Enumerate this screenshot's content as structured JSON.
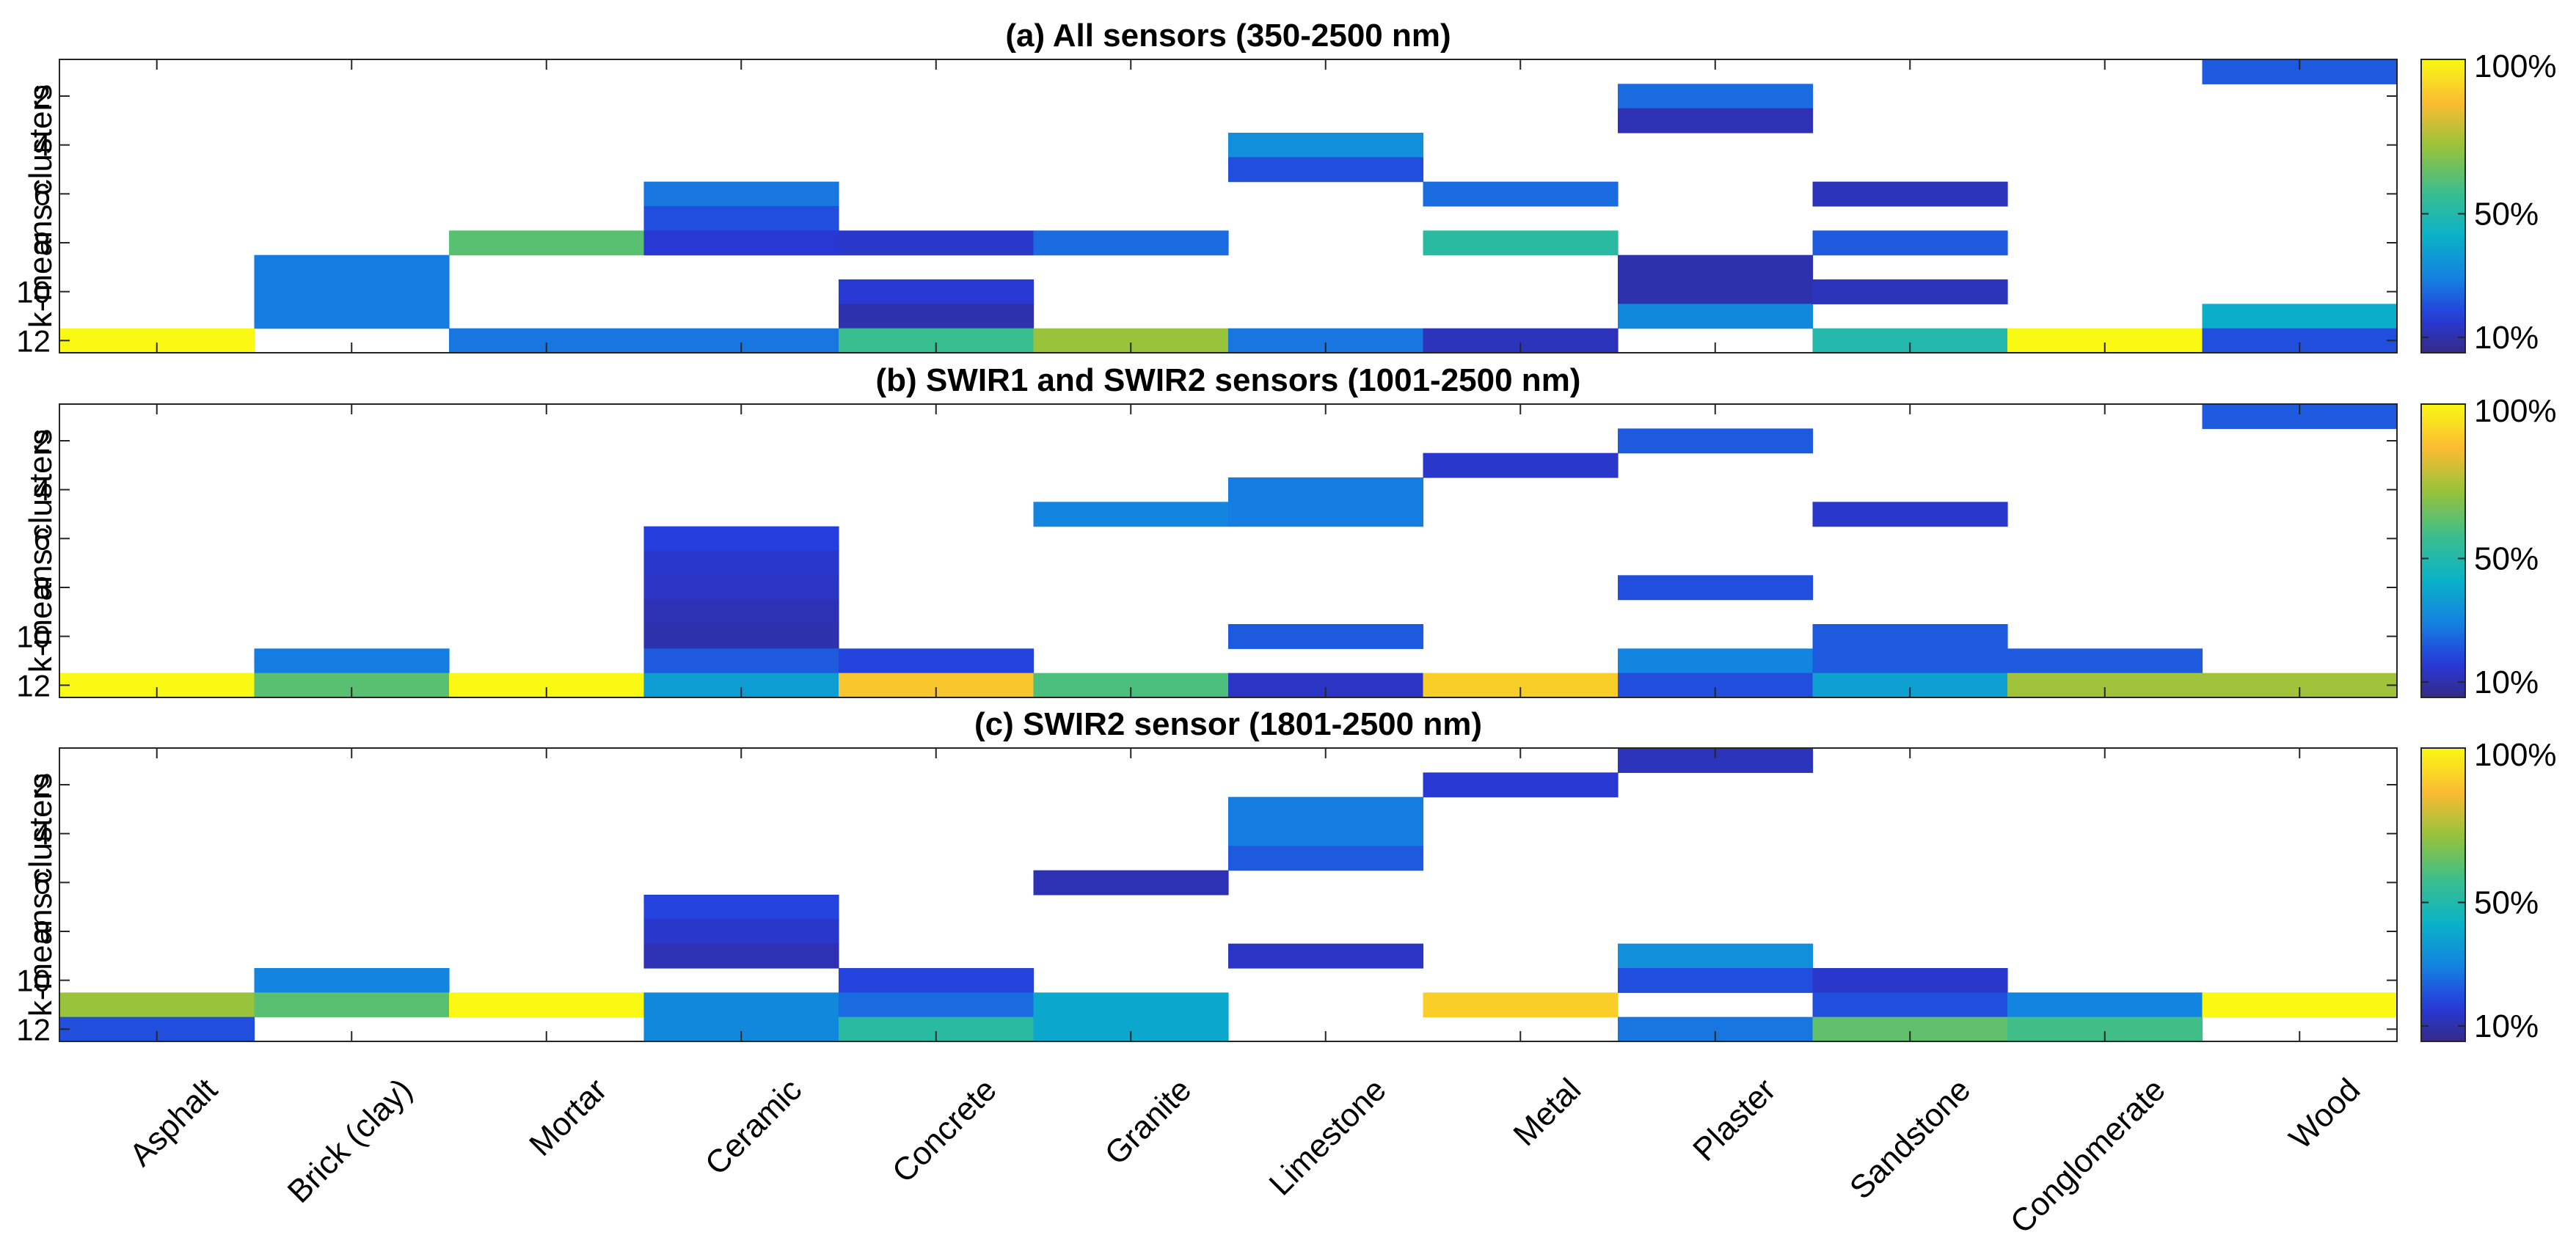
{
  "chart_data": {
    "type": "heatmap",
    "colormap": "parula",
    "x_categories": [
      "Asphalt",
      "Brick (clay)",
      "Mortar",
      "Ceramic",
      "Concrete",
      "Granite",
      "Limestone",
      "Metal",
      "Plaster",
      "Sandstone",
      "Conglomerate",
      "Wood"
    ],
    "ylabel": "k-means clusters",
    "y_range": [
      1,
      12
    ],
    "y_ticks": [
      "2",
      "4",
      "6",
      "8",
      "10",
      "12"
    ],
    "colorbar": {
      "ticks": [
        {
          "label": "100%",
          "value": 100
        },
        {
          "label": "50%",
          "value": 50
        },
        {
          "label": "10%",
          "value": 10
        }
      ],
      "range": [
        5,
        100
      ]
    },
    "panels": [
      {
        "title": "(a) All sensors (350-2500 nm)",
        "cells": [
          {
            "material": "Asphalt",
            "cluster": 12,
            "value": 100
          },
          {
            "material": "Brick (clay)",
            "cluster": 9,
            "value": 28
          },
          {
            "material": "Brick (clay)",
            "cluster": 10,
            "value": 28
          },
          {
            "material": "Brick (clay)",
            "cluster": 11,
            "value": 28
          },
          {
            "material": "Mortar",
            "cluster": 8,
            "value": 62
          },
          {
            "material": "Mortar",
            "cluster": 12,
            "value": 27
          },
          {
            "material": "Ceramic",
            "cluster": 6,
            "value": 27
          },
          {
            "material": "Ceramic",
            "cluster": 7,
            "value": 20
          },
          {
            "material": "Ceramic",
            "cluster": 8,
            "value": 15
          },
          {
            "material": "Ceramic",
            "cluster": 12,
            "value": 27
          },
          {
            "material": "Concrete",
            "cluster": 8,
            "value": 14
          },
          {
            "material": "Concrete",
            "cluster": 10,
            "value": 15
          },
          {
            "material": "Concrete",
            "cluster": 11,
            "value": 10
          },
          {
            "material": "Concrete",
            "cluster": 12,
            "value": 56
          },
          {
            "material": "Granite",
            "cluster": 8,
            "value": 25
          },
          {
            "material": "Granite",
            "cluster": 12,
            "value": 72
          },
          {
            "material": "Limestone",
            "cluster": 4,
            "value": 33
          },
          {
            "material": "Limestone",
            "cluster": 5,
            "value": 20
          },
          {
            "material": "Limestone",
            "cluster": 12,
            "value": 27
          },
          {
            "material": "Metal",
            "cluster": 6,
            "value": 25
          },
          {
            "material": "Metal",
            "cluster": 8,
            "value": 52
          },
          {
            "material": "Metal",
            "cluster": 12,
            "value": 12
          },
          {
            "material": "Plaster",
            "cluster": 2,
            "value": 25
          },
          {
            "material": "Plaster",
            "cluster": 3,
            "value": 11
          },
          {
            "material": "Plaster",
            "cluster": 9,
            "value": 10
          },
          {
            "material": "Plaster",
            "cluster": 10,
            "value": 10
          },
          {
            "material": "Plaster",
            "cluster": 11,
            "value": 31
          },
          {
            "material": "Sandstone",
            "cluster": 6,
            "value": 12
          },
          {
            "material": "Sandstone",
            "cluster": 8,
            "value": 22
          },
          {
            "material": "Sandstone",
            "cluster": 10,
            "value": 12
          },
          {
            "material": "Sandstone",
            "cluster": 12,
            "value": 50
          },
          {
            "material": "Conglomerate",
            "cluster": 12,
            "value": 100
          },
          {
            "material": "Wood",
            "cluster": 1,
            "value": 22
          },
          {
            "material": "Wood",
            "cluster": 11,
            "value": 42
          },
          {
            "material": "Wood",
            "cluster": 12,
            "value": 20
          }
        ]
      },
      {
        "title": "(b) SWIR1 and SWIR2 sensors (1001-2500 nm)",
        "cells": [
          {
            "material": "Asphalt",
            "cluster": 12,
            "value": 100
          },
          {
            "material": "Brick (clay)",
            "cluster": 11,
            "value": 28
          },
          {
            "material": "Brick (clay)",
            "cluster": 12,
            "value": 62
          },
          {
            "material": "Mortar",
            "cluster": 12,
            "value": 100
          },
          {
            "material": "Ceramic",
            "cluster": 6,
            "value": 17
          },
          {
            "material": "Ceramic",
            "cluster": 7,
            "value": 14
          },
          {
            "material": "Ceramic",
            "cluster": 8,
            "value": 13
          },
          {
            "material": "Ceramic",
            "cluster": 9,
            "value": 11
          },
          {
            "material": "Ceramic",
            "cluster": 10,
            "value": 10
          },
          {
            "material": "Ceramic",
            "cluster": 11,
            "value": 22
          },
          {
            "material": "Ceramic",
            "cluster": 12,
            "value": 37
          },
          {
            "material": "Concrete",
            "cluster": 11,
            "value": 18
          },
          {
            "material": "Concrete",
            "cluster": 12,
            "value": 88
          },
          {
            "material": "Granite",
            "cluster": 5,
            "value": 30
          },
          {
            "material": "Granite",
            "cluster": 12,
            "value": 60
          },
          {
            "material": "Limestone",
            "cluster": 4,
            "value": 28
          },
          {
            "material": "Limestone",
            "cluster": 5,
            "value": 28
          },
          {
            "material": "Limestone",
            "cluster": 10,
            "value": 22
          },
          {
            "material": "Limestone",
            "cluster": 12,
            "value": 13
          },
          {
            "material": "Metal",
            "cluster": 3,
            "value": 14
          },
          {
            "material": "Metal",
            "cluster": 12,
            "value": 90
          },
          {
            "material": "Plaster",
            "cluster": 2,
            "value": 22
          },
          {
            "material": "Plaster",
            "cluster": 8,
            "value": 20
          },
          {
            "material": "Plaster",
            "cluster": 11,
            "value": 30
          },
          {
            "material": "Plaster",
            "cluster": 12,
            "value": 20
          },
          {
            "material": "Sandstone",
            "cluster": 5,
            "value": 14
          },
          {
            "material": "Sandstone",
            "cluster": 10,
            "value": 22
          },
          {
            "material": "Sandstone",
            "cluster": 11,
            "value": 22
          },
          {
            "material": "Sandstone",
            "cluster": 12,
            "value": 38
          },
          {
            "material": "Conglomerate",
            "cluster": 11,
            "value": 22
          },
          {
            "material": "Conglomerate",
            "cluster": 12,
            "value": 73
          },
          {
            "material": "Wood",
            "cluster": 1,
            "value": 22
          },
          {
            "material": "Wood",
            "cluster": 12,
            "value": 73
          }
        ]
      },
      {
        "title": "(c) SWIR2 sensor (1801-2500 nm)",
        "cells": [
          {
            "material": "Asphalt",
            "cluster": 11,
            "value": 72
          },
          {
            "material": "Asphalt",
            "cluster": 12,
            "value": 20
          },
          {
            "material": "Brick (clay)",
            "cluster": 10,
            "value": 30
          },
          {
            "material": "Brick (clay)",
            "cluster": 11,
            "value": 62
          },
          {
            "material": "Mortar",
            "cluster": 11,
            "value": 100
          },
          {
            "material": "Ceramic",
            "cluster": 7,
            "value": 18
          },
          {
            "material": "Ceramic",
            "cluster": 8,
            "value": 14
          },
          {
            "material": "Ceramic",
            "cluster": 9,
            "value": 11
          },
          {
            "material": "Ceramic",
            "cluster": 11,
            "value": 31
          },
          {
            "material": "Ceramic",
            "cluster": 12,
            "value": 31
          },
          {
            "material": "Concrete",
            "cluster": 10,
            "value": 18
          },
          {
            "material": "Concrete",
            "cluster": 11,
            "value": 25
          },
          {
            "material": "Concrete",
            "cluster": 12,
            "value": 52
          },
          {
            "material": "Granite",
            "cluster": 6,
            "value": 11
          },
          {
            "material": "Granite",
            "cluster": 11,
            "value": 40
          },
          {
            "material": "Granite",
            "cluster": 12,
            "value": 40
          },
          {
            "material": "Limestone",
            "cluster": 3,
            "value": 28
          },
          {
            "material": "Limestone",
            "cluster": 4,
            "value": 28
          },
          {
            "material": "Limestone",
            "cluster": 5,
            "value": 22
          },
          {
            "material": "Limestone",
            "cluster": 9,
            "value": 13
          },
          {
            "material": "Metal",
            "cluster": 2,
            "value": 15
          },
          {
            "material": "Metal",
            "cluster": 11,
            "value": 90
          },
          {
            "material": "Plaster",
            "cluster": 1,
            "value": 12
          },
          {
            "material": "Plaster",
            "cluster": 9,
            "value": 33
          },
          {
            "material": "Plaster",
            "cluster": 10,
            "value": 20
          },
          {
            "material": "Plaster",
            "cluster": 12,
            "value": 27
          },
          {
            "material": "Sandstone",
            "cluster": 10,
            "value": 14
          },
          {
            "material": "Sandstone",
            "cluster": 11,
            "value": 20
          },
          {
            "material": "Sandstone",
            "cluster": 12,
            "value": 63
          },
          {
            "material": "Conglomerate",
            "cluster": 11,
            "value": 30
          },
          {
            "material": "Conglomerate",
            "cluster": 12,
            "value": 58
          },
          {
            "material": "Wood",
            "cluster": 11,
            "value": 100
          }
        ]
      }
    ]
  }
}
